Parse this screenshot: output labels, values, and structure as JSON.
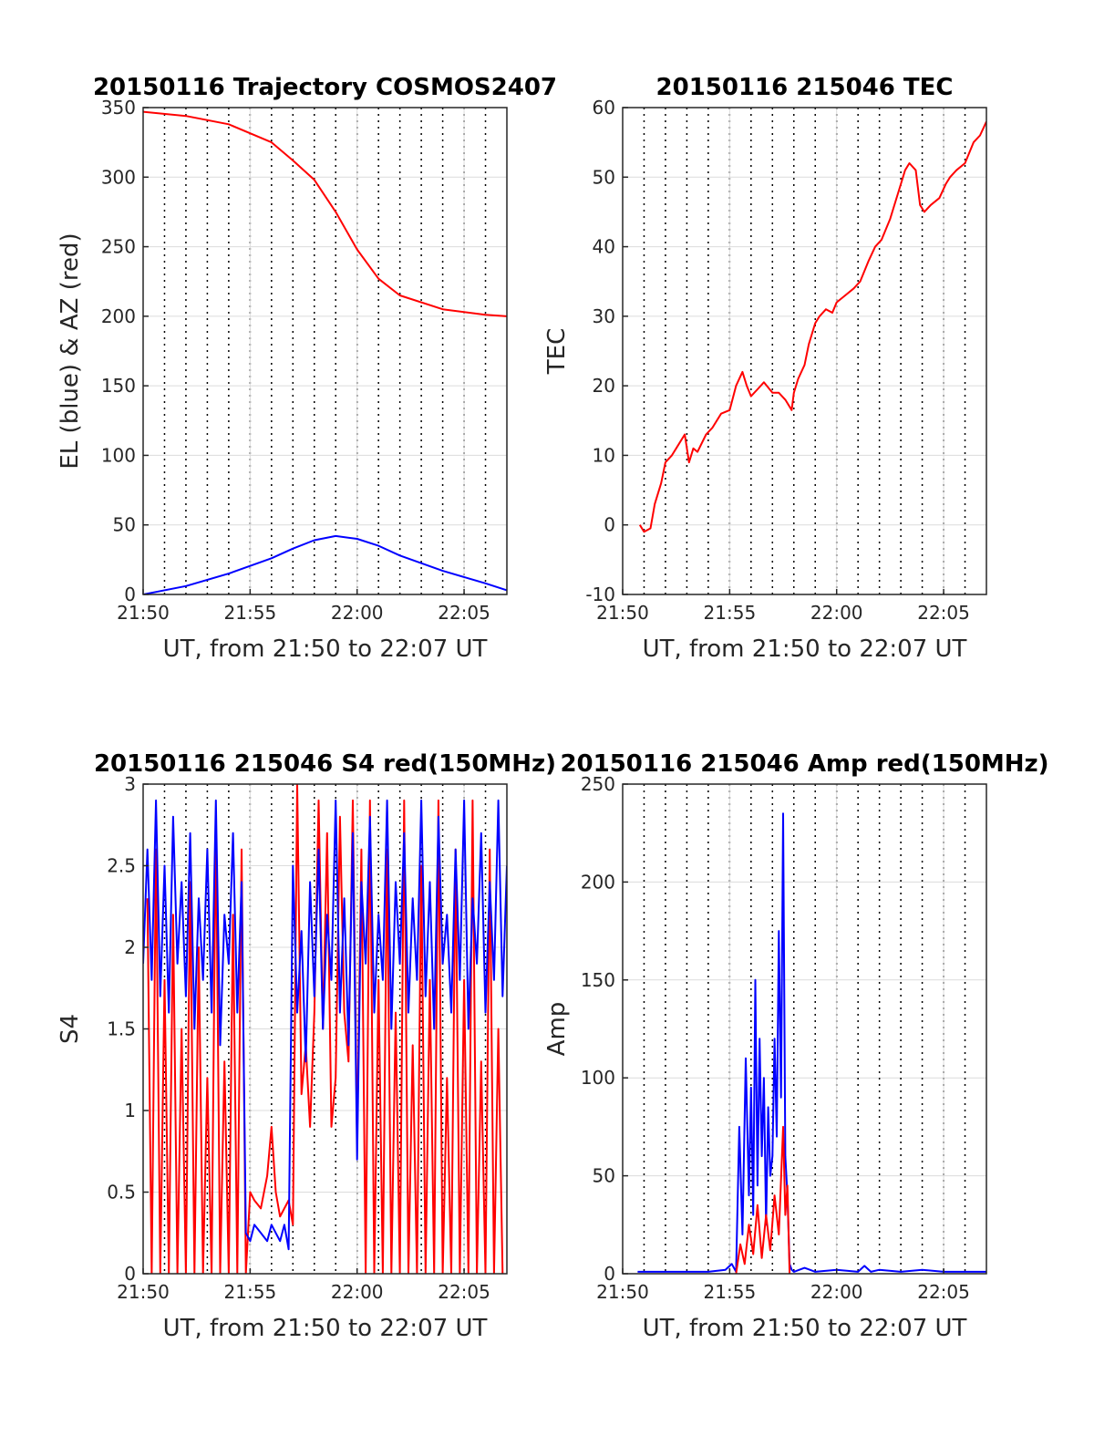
{
  "chart_data": [
    {
      "type": "line",
      "title": "20150116 Trajectory COSMOS2407",
      "xlabel": "UT, from 21:50 to 22:07 UT",
      "ylabel": "EL (blue) & AZ (red)",
      "xlim_minutes": [
        0,
        17
      ],
      "ylim": [
        0,
        350
      ],
      "x_ticks": [
        "21:50",
        "21:55",
        "22:00",
        "22:05"
      ],
      "y_ticks": [
        "0",
        "50",
        "100",
        "150",
        "200",
        "250",
        "300",
        "350"
      ],
      "grid": true,
      "series": [
        {
          "color": "#ff0000",
          "x": [
            0,
            2,
            4,
            6,
            7,
            8,
            9,
            10,
            11,
            12,
            14,
            16,
            17
          ],
          "y": [
            347,
            344,
            338,
            325,
            312,
            298,
            275,
            248,
            227,
            215,
            205,
            201,
            200
          ]
        },
        {
          "color": "#0000ff",
          "x": [
            0,
            2,
            4,
            6,
            7,
            8,
            9,
            10,
            11,
            12,
            14,
            16,
            17
          ],
          "y": [
            0,
            6,
            15,
            26,
            33,
            39,
            42,
            40,
            35,
            28,
            17,
            8,
            3
          ]
        }
      ]
    },
    {
      "type": "line",
      "title": "20150116 215046 TEC",
      "xlabel": "UT, from 21:50 to 22:07 UT",
      "ylabel": "TEC",
      "xlim_minutes": [
        0,
        17
      ],
      "ylim": [
        -10,
        60
      ],
      "x_ticks": [
        "21:50",
        "21:55",
        "22:00",
        "22:05"
      ],
      "y_ticks": [
        "-10",
        "0",
        "10",
        "20",
        "30",
        "40",
        "50",
        "60"
      ],
      "grid": true,
      "series": [
        {
          "color": "#ff0000",
          "x": [
            0.8,
            1.0,
            1.3,
            1.5,
            1.8,
            2.0,
            2.3,
            2.5,
            2.9,
            3.1,
            3.3,
            3.5,
            3.9,
            4.2,
            4.6,
            5.0,
            5.3,
            5.6,
            5.8,
            6.0,
            6.3,
            6.6,
            7.0,
            7.3,
            7.6,
            7.9,
            8.0,
            8.2,
            8.5,
            8.7,
            9.0,
            9.2,
            9.5,
            9.8,
            10.0,
            10.4,
            10.8,
            11.1,
            11.5,
            11.8,
            12.1,
            12.5,
            12.9,
            13.2,
            13.4,
            13.7,
            13.9,
            14.1,
            14.4,
            14.8,
            15.1,
            15.3,
            15.6,
            16.0,
            16.4,
            16.7,
            17.0
          ],
          "y": [
            0,
            -1,
            -0.5,
            3,
            6,
            9,
            10,
            11,
            13,
            9,
            11,
            10.5,
            13,
            14,
            16,
            16.5,
            20,
            22,
            20,
            18.5,
            19.5,
            20.5,
            19,
            19,
            18,
            16.5,
            19,
            21,
            23,
            26,
            29,
            30,
            31,
            30.5,
            32,
            33,
            34,
            35,
            38,
            40,
            41,
            44,
            48,
            51,
            52,
            51,
            46,
            45,
            46,
            47,
            49,
            50,
            51,
            52,
            55,
            56,
            58
          ]
        }
      ]
    },
    {
      "type": "line",
      "title": "20150116 215046 S4 red(150MHz)",
      "xlabel": "UT, from 21:50 to 22:07 UT",
      "ylabel": "S4",
      "xlim_minutes": [
        0,
        17
      ],
      "ylim": [
        0,
        3
      ],
      "x_ticks": [
        "21:50",
        "21:55",
        "22:00",
        "22:05"
      ],
      "y_ticks": [
        "0",
        "0.5",
        "1",
        "1.5",
        "2",
        "2.5",
        "3"
      ],
      "grid": true,
      "series": [
        {
          "color": "#ff0000",
          "x": [
            0.2,
            0.4,
            0.6,
            0.8,
            1.0,
            1.2,
            1.4,
            1.6,
            1.8,
            2.0,
            2.2,
            2.4,
            2.6,
            2.8,
            3.0,
            3.2,
            3.4,
            3.6,
            3.8,
            4.0,
            4.2,
            4.4,
            4.6,
            4.8,
            5.0,
            5.2,
            5.5,
            5.8,
            6.0,
            6.2,
            6.4,
            6.6,
            6.8,
            7.0,
            7.2,
            7.4,
            7.6,
            7.8,
            8.0,
            8.2,
            8.4,
            8.6,
            8.8,
            9.0,
            9.2,
            9.4,
            9.6,
            9.8,
            10.0,
            10.2,
            10.4,
            10.6,
            10.8,
            11.0,
            11.2,
            11.4,
            11.6,
            11.8,
            12.0,
            12.2,
            12.4,
            12.6,
            12.8,
            13.0,
            13.2,
            13.4,
            13.6,
            13.8,
            14.0,
            14.2,
            14.4,
            14.6,
            14.8,
            15.0,
            15.2,
            15.4,
            15.6,
            15.8,
            16.0,
            16.2,
            16.4,
            16.6,
            16.8
          ],
          "y": [
            2.3,
            0,
            2.6,
            0,
            1.8,
            0,
            2.2,
            0,
            1.5,
            0,
            2.4,
            0,
            2.0,
            0,
            1.2,
            0,
            2.8,
            0,
            1.3,
            0,
            2.2,
            0,
            2.6,
            0,
            0.5,
            0.45,
            0.4,
            0.6,
            0.9,
            0.5,
            0.35,
            0.4,
            0.45,
            0.3,
            3.0,
            1.1,
            1.4,
            0.9,
            1.6,
            2.9,
            1.5,
            2.7,
            0.9,
            1.2,
            2.8,
            1.6,
            1.3,
            2.9,
            0.8,
            2.6,
            0,
            2.9,
            0,
            1.8,
            0,
            2.6,
            0,
            1.6,
            0,
            2.9,
            0,
            1.4,
            0,
            2.5,
            0,
            1.8,
            0,
            2.9,
            0,
            1.2,
            0,
            2.6,
            0,
            1.8,
            0,
            2.9,
            0,
            1.3,
            0,
            2.6,
            0,
            1.5,
            0
          ]
        },
        {
          "color": "#0000ff",
          "x": [
            0.0,
            0.2,
            0.4,
            0.6,
            0.8,
            1.0,
            1.2,
            1.4,
            1.6,
            1.8,
            2.0,
            2.2,
            2.4,
            2.6,
            2.8,
            3.0,
            3.2,
            3.4,
            3.6,
            3.8,
            4.0,
            4.2,
            4.4,
            4.6,
            4.8,
            5.0,
            5.2,
            5.5,
            5.8,
            6.0,
            6.2,
            6.4,
            6.6,
            6.8,
            7.0,
            7.2,
            7.4,
            7.6,
            7.8,
            8.0,
            8.2,
            8.4,
            8.6,
            8.8,
            9.0,
            9.2,
            9.4,
            9.6,
            9.8,
            10.0,
            10.2,
            10.4,
            10.6,
            10.8,
            11.0,
            11.2,
            11.4,
            11.6,
            11.8,
            12.0,
            12.2,
            12.4,
            12.6,
            12.8,
            13.0,
            13.2,
            13.4,
            13.6,
            13.8,
            14.0,
            14.2,
            14.4,
            14.6,
            14.8,
            15.0,
            15.2,
            15.4,
            15.6,
            15.8,
            16.0,
            16.2,
            16.4,
            16.6,
            16.8,
            17.0
          ],
          "y": [
            1.9,
            2.6,
            1.8,
            2.9,
            1.7,
            2.5,
            1.6,
            2.8,
            1.9,
            2.4,
            1.7,
            2.7,
            1.5,
            2.3,
            1.8,
            2.6,
            1.6,
            2.9,
            1.4,
            2.2,
            1.9,
            2.7,
            1.6,
            2.4,
            0.25,
            0.2,
            0.3,
            0.25,
            0.2,
            0.3,
            0.25,
            0.2,
            0.3,
            0.15,
            2.5,
            1.6,
            2.1,
            1.3,
            2.4,
            1.7,
            2.6,
            1.5,
            2.2,
            1.8,
            2.9,
            1.6,
            2.3,
            1.4,
            2.7,
            0.7,
            2.4,
            1.9,
            2.8,
            1.6,
            2.2,
            1.8,
            2.9,
            1.5,
            2.4,
            1.9,
            2.7,
            1.6,
            2.3,
            1.8,
            2.9,
            1.7,
            2.4,
            1.5,
            2.8,
            1.9,
            2.2,
            1.6,
            2.6,
            1.8,
            2.9,
            1.5,
            2.3,
            1.9,
            2.7,
            1.6,
            2.4,
            1.8,
            2.9,
            1.7,
            2.5
          ]
        }
      ]
    },
    {
      "type": "line",
      "title": "20150116 215046 Amp red(150MHz)",
      "xlabel": "UT, from 21:50 to 22:07 UT",
      "ylabel": "Amp",
      "xlim_minutes": [
        0,
        17
      ],
      "ylim": [
        0,
        250
      ],
      "x_ticks": [
        "21:50",
        "21:55",
        "22:00",
        "22:05"
      ],
      "y_ticks": [
        "0",
        "50",
        "100",
        "150",
        "200",
        "250"
      ],
      "grid": true,
      "series": [
        {
          "color": "#0000ff",
          "x": [
            0.7,
            2.0,
            3.0,
            4.0,
            4.8,
            5.1,
            5.3,
            5.45,
            5.6,
            5.75,
            5.9,
            6.0,
            6.1,
            6.2,
            6.3,
            6.4,
            6.5,
            6.6,
            6.7,
            6.8,
            6.9,
            7.0,
            7.1,
            7.2,
            7.3,
            7.4,
            7.5,
            7.6,
            7.7,
            7.8,
            7.9,
            8.0,
            8.5,
            9.0,
            10.0,
            11.0,
            11.3,
            11.6,
            12.0,
            13.0,
            14.0,
            15.0,
            16.0,
            17.0
          ],
          "y": [
            1,
            1,
            1,
            1,
            2,
            5,
            1,
            75,
            20,
            110,
            40,
            95,
            30,
            150,
            45,
            120,
            60,
            100,
            25,
            85,
            50,
            60,
            120,
            70,
            175,
            90,
            235,
            60,
            40,
            5,
            2,
            1,
            3,
            1,
            2,
            1,
            4,
            1,
            2,
            1,
            2,
            1,
            1,
            1
          ]
        },
        {
          "color": "#ff0000",
          "x": [
            5.3,
            5.5,
            5.7,
            5.9,
            6.1,
            6.3,
            6.5,
            6.7,
            6.9,
            7.1,
            7.3,
            7.5,
            7.6,
            7.7,
            7.8
          ],
          "y": [
            0,
            15,
            5,
            25,
            10,
            35,
            8,
            30,
            12,
            40,
            20,
            75,
            30,
            45,
            0
          ]
        }
      ]
    }
  ]
}
